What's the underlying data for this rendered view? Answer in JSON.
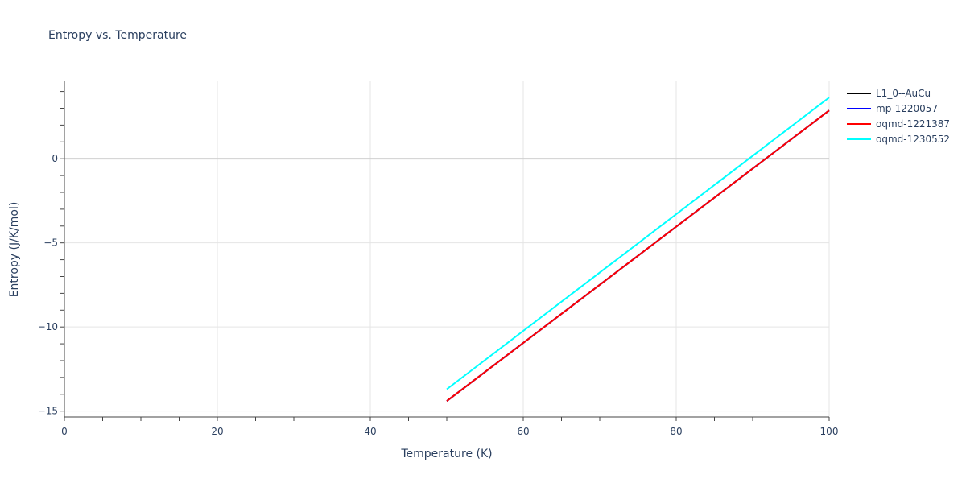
{
  "title": "Entropy vs. Temperature",
  "legend": [
    {
      "name": "L1_0--AuCu",
      "color": "#000000"
    },
    {
      "name": "mp-1220057",
      "color": "#0000ff"
    },
    {
      "name": "oqmd-1221387",
      "color": "#ff0000"
    },
    {
      "name": "oqmd-1230552",
      "color": "#00ffff"
    }
  ],
  "chart_data": {
    "type": "line",
    "title": "Entropy vs. Temperature",
    "xlabel": "Temperature (K)",
    "ylabel": "Entropy (J/K/mol)",
    "xlim": [
      0,
      100
    ],
    "ylim": [
      -15.35,
      4.65
    ],
    "x_ticks": [
      0,
      20,
      40,
      60,
      80,
      100
    ],
    "y_ticks": [
      -15,
      -10,
      -5,
      0
    ],
    "y_tick_labels": [
      "−15",
      "−10",
      "−5",
      "0"
    ],
    "grid": true,
    "legend_position": "right",
    "series": [
      {
        "name": "L1_0--AuCu",
        "color": "#000000",
        "x": [
          50,
          100
        ],
        "y": [
          -14.4,
          2.87
        ]
      },
      {
        "name": "mp-1220057",
        "color": "#0000ff",
        "x": [
          50,
          100
        ],
        "y": [
          -14.4,
          2.87
        ]
      },
      {
        "name": "oqmd-1221387",
        "color": "#ff0000",
        "x": [
          50,
          100
        ],
        "y": [
          -14.4,
          2.87
        ]
      },
      {
        "name": "oqmd-1230552",
        "color": "#00ffff",
        "x": [
          50,
          100
        ],
        "y": [
          -13.7,
          3.64
        ]
      }
    ]
  }
}
